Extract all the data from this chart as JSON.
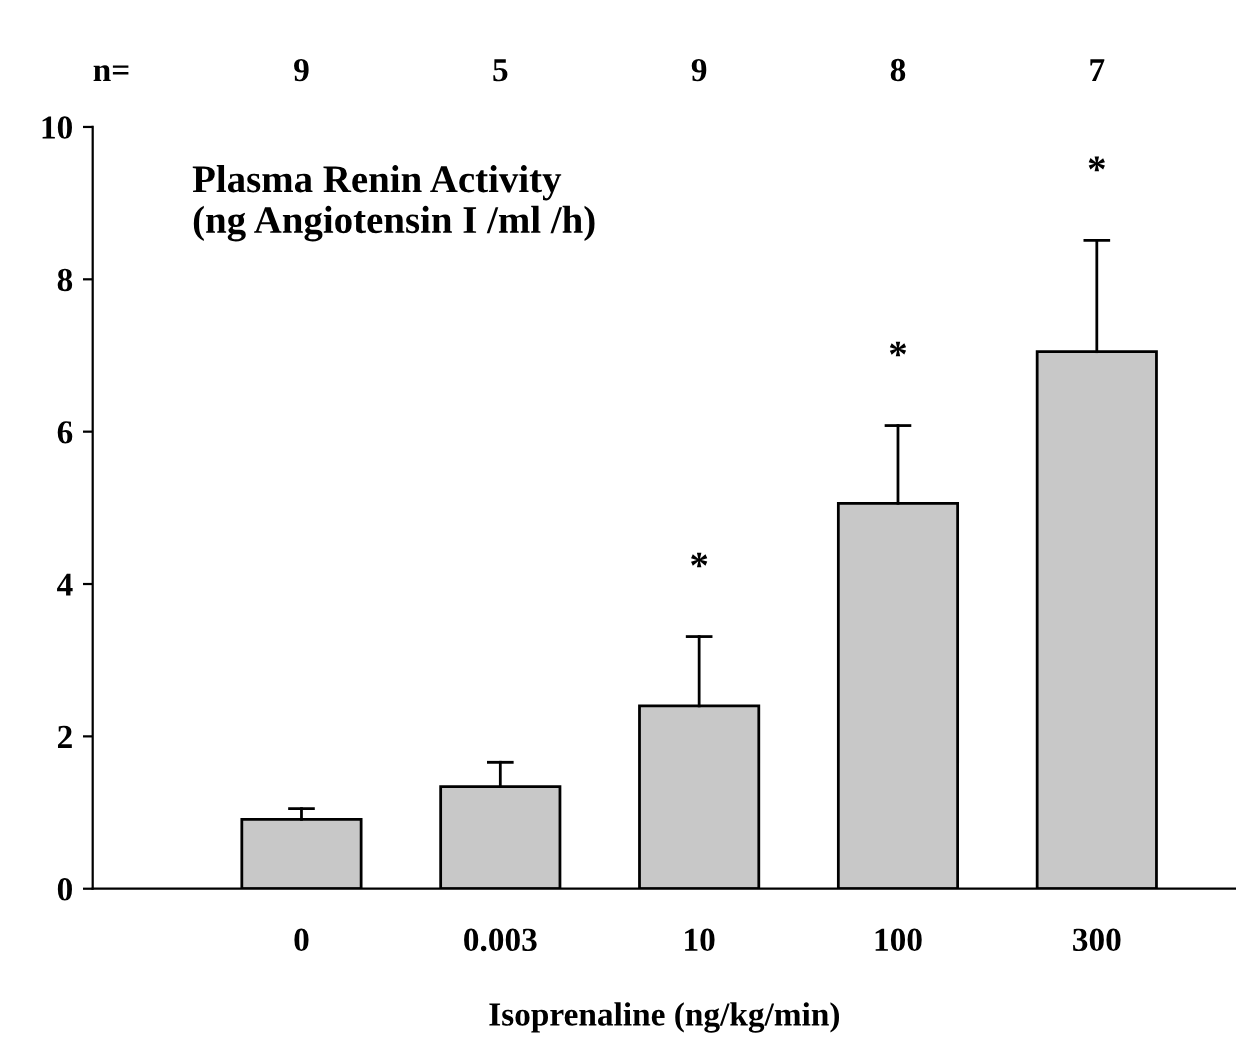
{
  "chart_data": {
    "type": "bar",
    "title": "Plasma Renin Activity\n(ng Angiotensin I /ml /h)",
    "xlabel": "Isoprenaline (ng/kg/min)",
    "categories": [
      "0",
      "0.003",
      "10",
      "100",
      "300"
    ],
    "values": [
      0.91,
      1.34,
      2.4,
      5.06,
      7.05
    ],
    "errors": [
      [
        0.91,
        1.05
      ],
      [
        1.34,
        1.66
      ],
      [
        2.4,
        3.31
      ],
      [
        5.06,
        6.08
      ],
      [
        7.05,
        8.51
      ]
    ],
    "color": "#c8c8c8",
    "ylim": [
      0,
      10
    ],
    "yticks": [
      0,
      2,
      4,
      6,
      8,
      10
    ],
    "grid": false,
    "annotations": [
      "n=",
      "9",
      "5",
      "9",
      "8",
      "7",
      "*",
      "*",
      "*"
    ]
  }
}
